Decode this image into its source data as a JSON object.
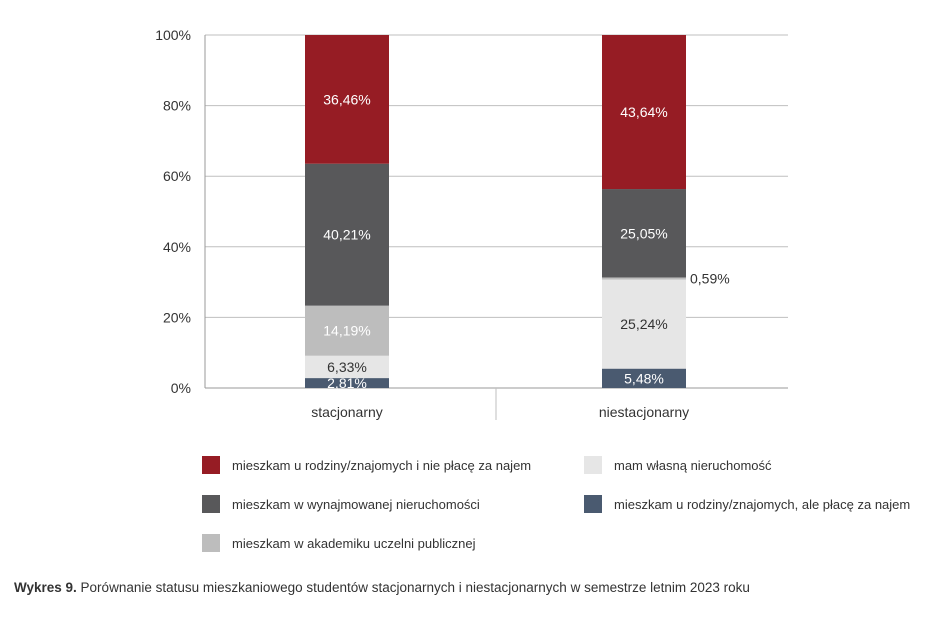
{
  "chart_data": {
    "type": "bar",
    "stacked": true,
    "categories": [
      "stacjonarny",
      "niestacjonarny"
    ],
    "ylim": [
      0,
      100
    ],
    "yticks": [
      "0%",
      "20%",
      "40%",
      "60%",
      "80%",
      "100%"
    ],
    "grid": true,
    "legend_position": "bottom",
    "series": [
      {
        "name": "mieszkam u rodziny/znajomych, ale płacę za najem",
        "color": "#4a5a70",
        "values": [
          2.81,
          5.48
        ],
        "labels": [
          "2,81%",
          "5,48%"
        ]
      },
      {
        "name": "mam własną nieruchomość",
        "color": "#e6e6e6",
        "values": [
          6.33,
          25.24
        ],
        "labels": [
          "6,33%",
          "25,24%"
        ]
      },
      {
        "name": "mieszkam w akademiku uczelni publicznej",
        "color": "#bdbdbd",
        "values": [
          14.19,
          0.59
        ],
        "labels": [
          "14,19%",
          "0,59%"
        ]
      },
      {
        "name": "mieszkam w wynajmowanej nieruchomości",
        "color": "#58585a",
        "values": [
          40.21,
          25.05
        ],
        "labels": [
          "40,21%",
          "25,05%"
        ]
      },
      {
        "name": "mieszkam u rodziny/znajomych i nie płacę za najem",
        "color": "#961c24",
        "values": [
          36.46,
          43.64
        ],
        "labels": [
          "36,46%",
          "43,64%"
        ]
      }
    ]
  },
  "legend": {
    "order": [
      4,
      1,
      3,
      0,
      2
    ]
  },
  "caption": {
    "prefix": "Wykres 9.",
    "text": " Porównanie statusu mieszkaniowego studentów stacjonarnych i niestacjonarnych w semestrze letnim 2023 roku"
  }
}
